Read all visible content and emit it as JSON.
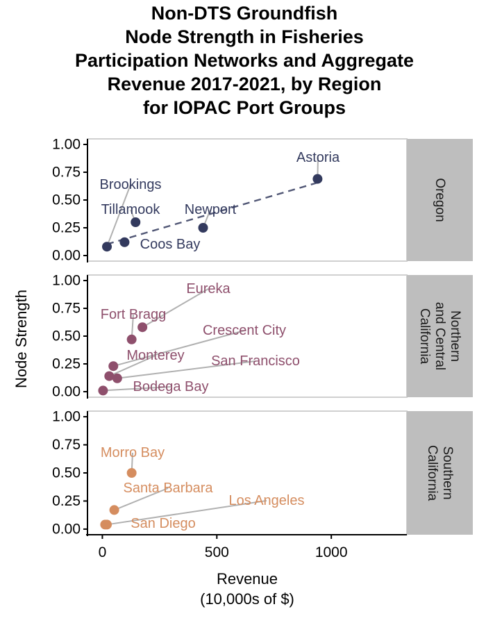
{
  "chart_data": {
    "type": "scatter",
    "title": [
      "Non-DTS Groundfish",
      "Node Strength in Fisheries",
      "Participation Networks and Aggregate",
      "Revenue 2017-2021, by Region",
      "for IOPAC Port Groups"
    ],
    "xlabel": [
      "Revenue",
      "(10,000s of $)"
    ],
    "ylabel": "Node Strength",
    "xlim": [
      -65,
      1330
    ],
    "ylim": [
      -0.05,
      1.05
    ],
    "xticks": [
      0,
      500,
      1000
    ],
    "yticks": [
      0.0,
      0.25,
      0.5,
      0.75,
      1.0
    ],
    "grid": false,
    "facets": [
      {
        "name": [
          "Oregon"
        ],
        "color": "#333a5e",
        "trend_line": true,
        "points": [
          {
            "label": "Astoria",
            "x": 940,
            "y": 0.69
          },
          {
            "label": "Brookings",
            "x": 20,
            "y": 0.08
          },
          {
            "label": "Tillamook",
            "x": 145,
            "y": 0.3
          },
          {
            "label": "Newport",
            "x": 440,
            "y": 0.25
          },
          {
            "label": "Coos Bay",
            "x": 97,
            "y": 0.12
          }
        ]
      },
      {
        "name": [
          "Northern",
          "and Central",
          "California"
        ],
        "color": "#8e4f6c",
        "trend_line": false,
        "points": [
          {
            "label": "Eureka",
            "x": 175,
            "y": 0.58
          },
          {
            "label": "Fort Bragg",
            "x": 128,
            "y": 0.47
          },
          {
            "label": "Crescent City",
            "x": 48,
            "y": 0.23
          },
          {
            "label": "Monterey",
            "x": 30,
            "y": 0.14
          },
          {
            "label": "San Francisco",
            "x": 65,
            "y": 0.12
          },
          {
            "label": "Bodega Bay",
            "x": 3,
            "y": 0.01
          }
        ]
      },
      {
        "name": [
          "Southern",
          "California"
        ],
        "color": "#d58d5f",
        "trend_line": false,
        "points": [
          {
            "label": "Morro Bay",
            "x": 128,
            "y": 0.5
          },
          {
            "label": "Santa Barbara",
            "x": 52,
            "y": 0.17
          },
          {
            "label": "Los Angeles",
            "x": 20,
            "y": 0.04
          },
          {
            "label": "San Diego",
            "x": 12,
            "y": 0.04
          }
        ]
      }
    ]
  }
}
